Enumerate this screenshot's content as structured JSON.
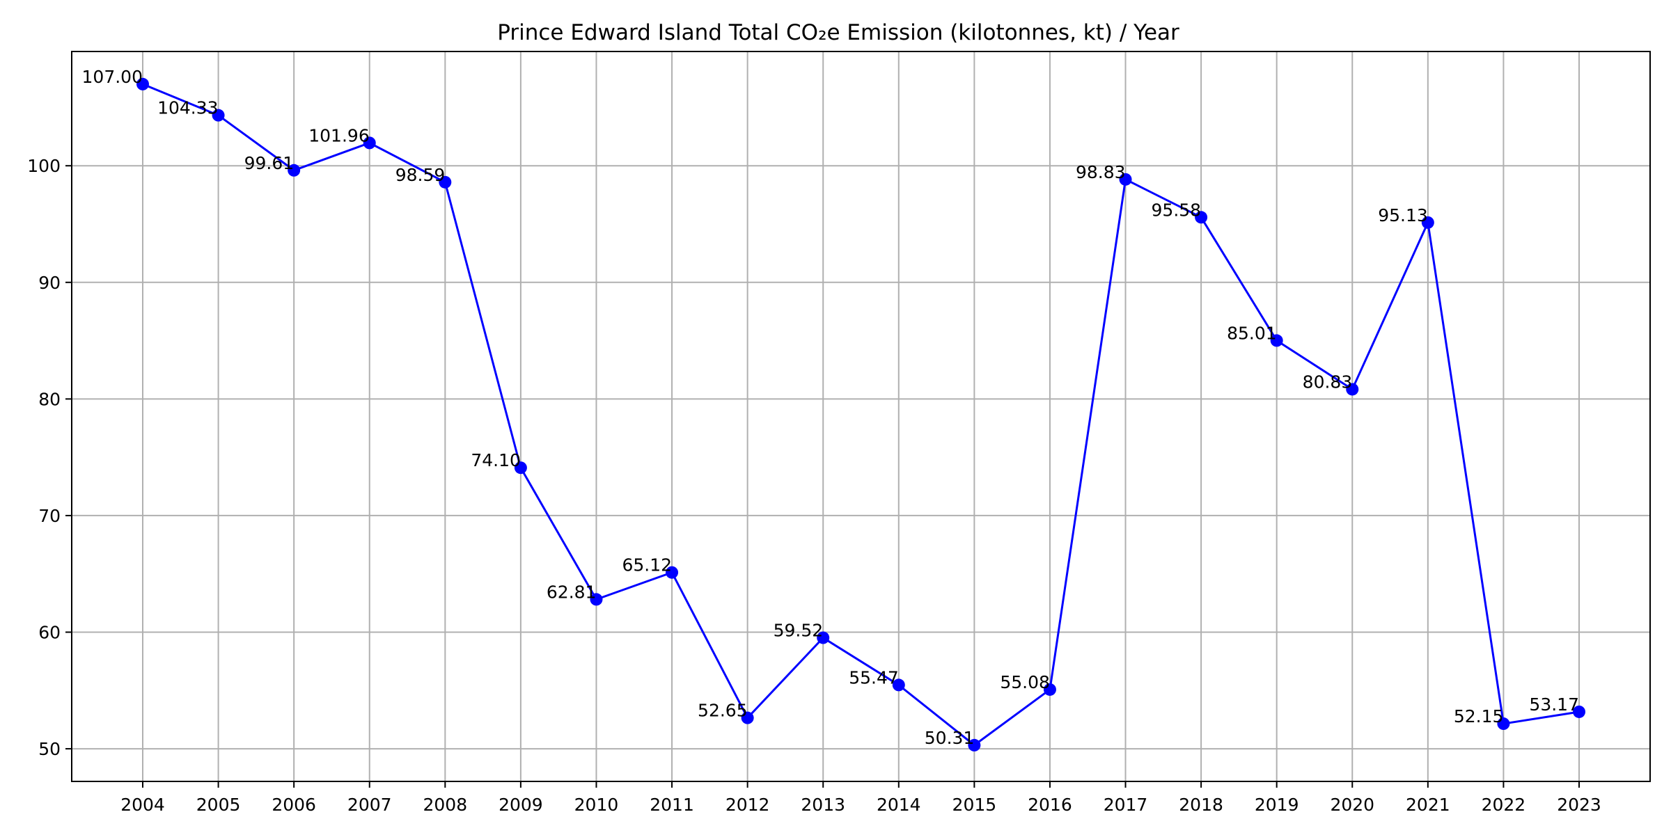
{
  "chart_data": {
    "type": "line",
    "title": "Prince Edward Island Total CO₂e Emission (kilotonnes, kt) / Year",
    "xlabel": "",
    "ylabel": "",
    "grid": true,
    "ylim": [
      47.2,
      109.8
    ],
    "yticks": [
      50,
      60,
      70,
      80,
      90,
      100
    ],
    "categories": [
      "2004",
      "2005",
      "2006",
      "2007",
      "2008",
      "2009",
      "2010",
      "2011",
      "2012",
      "2013",
      "2014",
      "2015",
      "2016",
      "2017",
      "2018",
      "2019",
      "2020",
      "2021",
      "2022",
      "2023"
    ],
    "series": [
      {
        "values": [
          107.0,
          104.33,
          99.61,
          101.96,
          98.59,
          74.1,
          62.81,
          65.12,
          52.65,
          59.52,
          55.47,
          50.31,
          55.08,
          98.83,
          95.58,
          85.01,
          80.83,
          95.13,
          52.15,
          53.17
        ],
        "labels": [
          "107.00",
          "104.33",
          "99.61",
          "101.96",
          "98.59",
          "74.10",
          "62.81",
          "65.12",
          "52.65",
          "59.52",
          "55.47",
          "50.31",
          "55.08",
          "98.83",
          "95.58",
          "85.01",
          "80.83",
          "95.13",
          "52.15",
          "53.17"
        ],
        "color": "#0000ff"
      }
    ]
  },
  "colors": {
    "grid": "#b0b0b0",
    "axis": "#000000",
    "line": "#0000ff"
  }
}
